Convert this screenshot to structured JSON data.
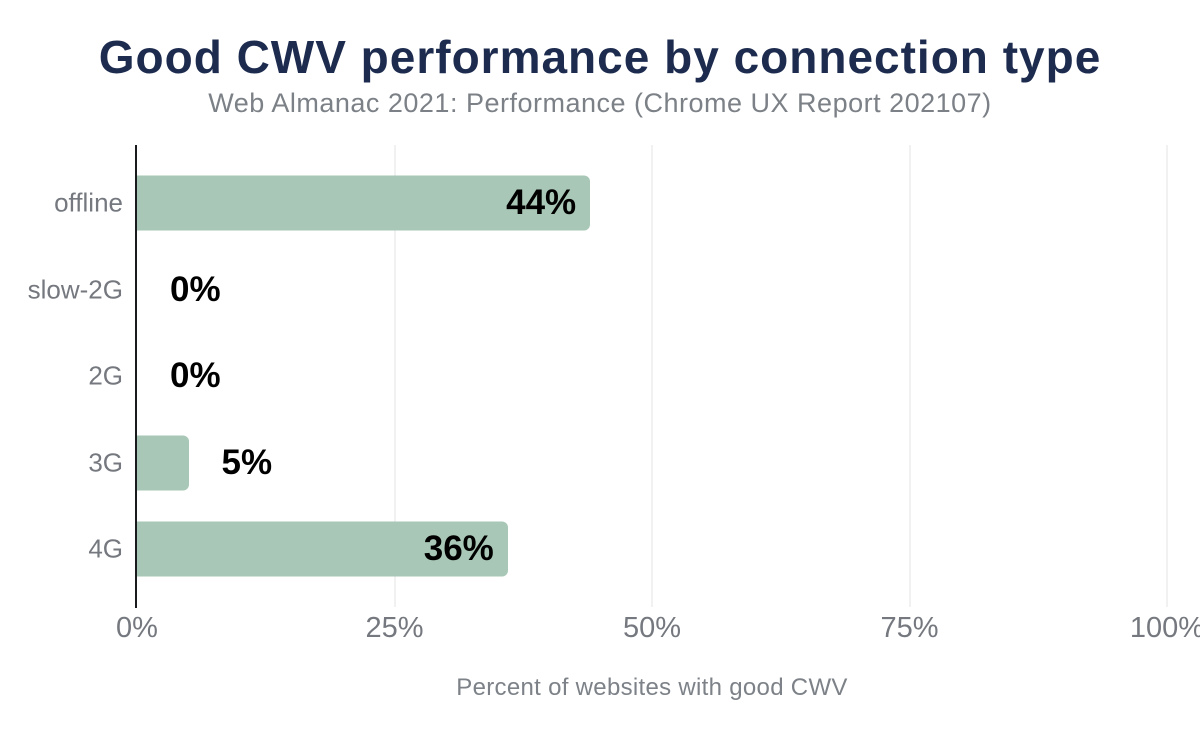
{
  "chart_data": {
    "type": "bar",
    "orientation": "horizontal",
    "title": "Good CWV performance by connection type",
    "subtitle": "Web Almanac 2021: Performance (Chrome UX Report 202107)",
    "categories": [
      "offline",
      "slow-2G",
      "2G",
      "3G",
      "4G"
    ],
    "values": [
      44,
      0,
      0,
      5,
      36
    ],
    "value_labels": [
      "44%",
      "0%",
      "0%",
      "5%",
      "36%"
    ],
    "xlabel": "Percent of websites with good CWV",
    "ylabel": "",
    "xlim": [
      0,
      100
    ],
    "x_ticks": [
      {
        "value": 0,
        "label": "0%"
      },
      {
        "value": 25,
        "label": "25%"
      },
      {
        "value": 50,
        "label": "50%"
      },
      {
        "value": 75,
        "label": "75%"
      },
      {
        "value": 100,
        "label": "100%"
      }
    ],
    "grid": "vertical gridlines at ticks, no horizontal axis line",
    "legend": "none",
    "value_label_inside_threshold": 20,
    "colors": {
      "background": "#ffffff",
      "title": "#1c2b4e",
      "subtitle": "#7c8187",
      "bar": "#a8c7b6",
      "value_label": "#000000",
      "category_label": "#75797f",
      "tick_label": "#75797f",
      "axis_label": "#7d8288",
      "gridline": "#f1f1f1",
      "axis_line": "#1a1b1d"
    }
  }
}
